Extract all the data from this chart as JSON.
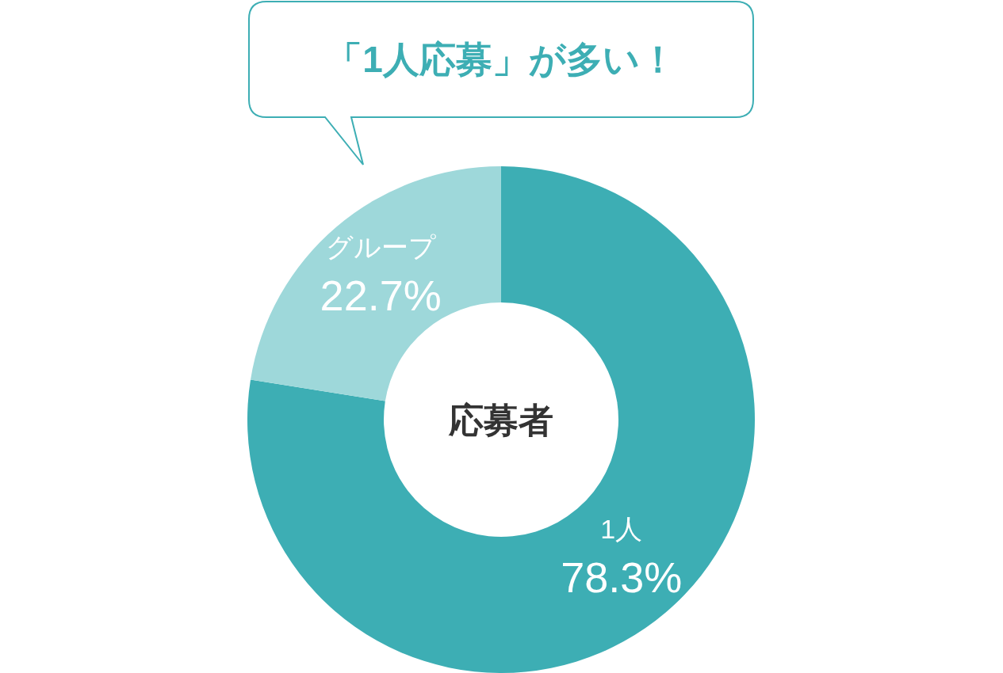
{
  "chart_data": {
    "type": "donut",
    "title": "応募者",
    "annotations": [
      "「1人応募」が多い！"
    ],
    "categories": [
      "1人",
      "グループ"
    ],
    "values": [
      78.3,
      22.7
    ],
    "colors": [
      "#3daeb4",
      "#9ed8da"
    ],
    "value_labels": [
      "78.3%",
      "22.7%"
    ]
  }
}
